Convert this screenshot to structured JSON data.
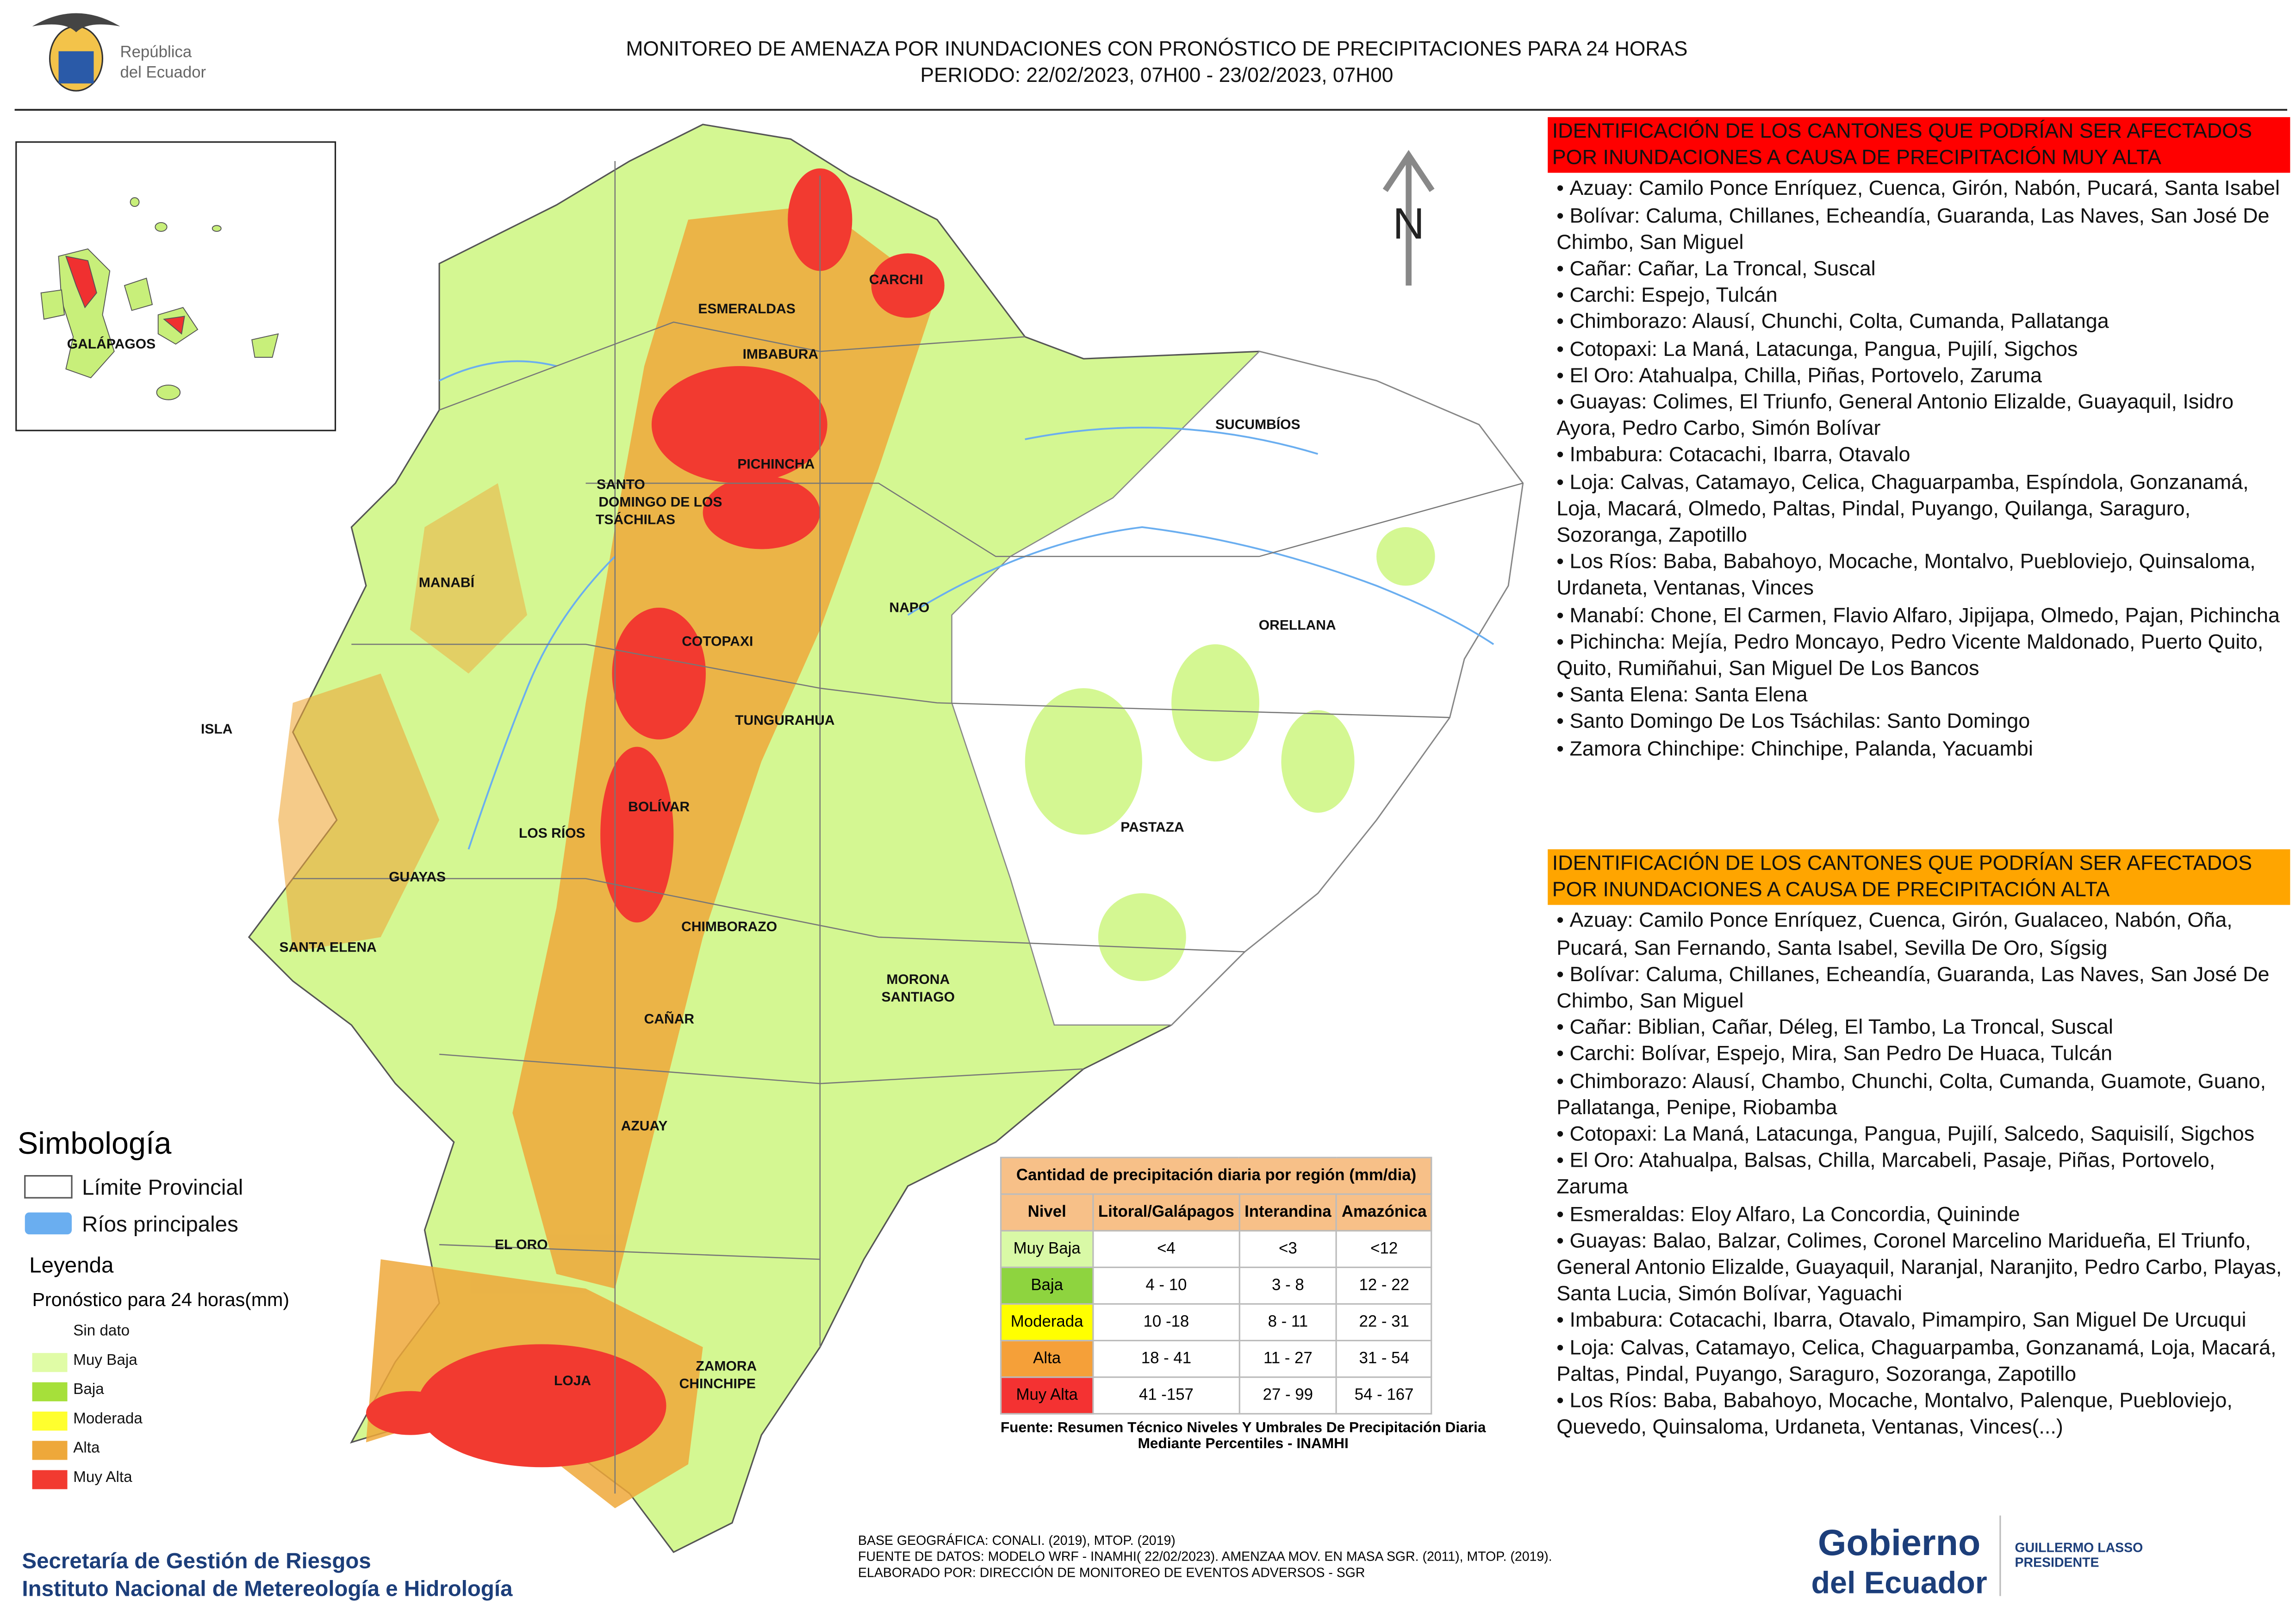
{
  "header": {
    "title": "MONITOREO DE AMENAZA POR INUNDACIONES  CON PRONÓSTICO DE  PRECIPITACIONES PARA 24 HORAS",
    "period": "PERIODO: 22/02/2023, 07H00 - 23/02/2023, 07H00"
  },
  "logo": {
    "line1": "República",
    "line2": "del Ecuador"
  },
  "map": {
    "north": "N",
    "inset_label": "GALÁPAGOS",
    "provinces": [
      "ESMERALDAS",
      "CARCHI",
      "IMBABURA",
      "SUCUMBÍOS",
      "PICHINCHA",
      "SANTO",
      "DOMINGO DE LOS",
      "TSÁCHILAS",
      "MANABÍ",
      "NAPO",
      "ORELLANA",
      "COTOPAXI",
      "TUNGURAHUA",
      "ISLA",
      "BOLÍVAR",
      "LOS RÍOS",
      "PASTAZA",
      "GUAYAS",
      "CHIMBORAZO",
      "SANTA ELENA",
      "MORONA",
      "SANTIAGO",
      "CAÑAR",
      "AZUAY",
      "EL ORO",
      "LOJA",
      "ZAMORA",
      "CHINCHIPE"
    ]
  },
  "simbologia": {
    "title": "Simbología",
    "items": [
      "Límite Provincial",
      "Ríos principales"
    ]
  },
  "leyenda": {
    "title": "Leyenda",
    "subtitle": "Pronóstico para 24 horas(mm)",
    "items": [
      {
        "label": "Sin dato",
        "color": "#ffffff"
      },
      {
        "label": " Muy Baja",
        "color": "#e0fca6"
      },
      {
        "label": "Baja",
        "color": "#a6e03a"
      },
      {
        "label": "Moderada",
        "color": "#ffff2e"
      },
      {
        "label": "Alta",
        "color": "#eea83a"
      },
      {
        "label": "Muy Alta",
        "color": "#f23a30"
      }
    ]
  },
  "table": {
    "title": "Cantidad de precipitación diaria por región (mm/dia)",
    "headers": [
      "Nivel",
      "Litoral/Galápagos",
      "Interandina",
      "Amazónica"
    ],
    "rows": [
      [
        "Muy Baja",
        "<4",
        "<3",
        "<12"
      ],
      [
        "Baja",
        "4 - 10",
        "3 - 8",
        "12 - 22"
      ],
      [
        "Moderada",
        "10 -18",
        "8 - 11",
        "22 - 31"
      ],
      [
        "Alta",
        "18 - 41",
        "11 - 27",
        "31 - 54"
      ],
      [
        "Muy Alta",
        "41 -157",
        "27 - 99",
        "54 - 167"
      ]
    ],
    "row_colors": [
      "#d9f9a6",
      "#8ed43f",
      "#ffff00",
      "#f5a039",
      "#f43232"
    ],
    "source": "Fuente: Resumen Técnico Niveles Y Umbrales De Precipitación Diaria Mediante Percentiles - INAMHI"
  },
  "credits": [
    "BASE GEOGRÁFICA: CONALI. (2019), MTOP. (2019)",
    "FUENTE DE DATOS: MODELO WRF - INAMHI( 22/02/2023).  AMENZAA MOV. EN MASA SGR. (2011), MTOP. (2019).",
    "ELABORADO POR: DIRECCIÓN DE MONITOREO DE EVENTOS ADVERSOS - SGR"
  ],
  "footer": {
    "org1": "Secretaría de Gestión de Riesgos",
    "org2": "Instituto Nacional de Metereología e Hidrología",
    "gov1": "Gobierno",
    "gov2": "del Ecuador",
    "pres1": "GUILLERMO LASSO",
    "pres2": "PRESIDENTE"
  },
  "muy_alta": {
    "heading": "IDENTIFICACIÓN DE LOS CANTONES QUE PODRÍAN SER AFECTADOS POR INUNDACIONES  A CAUSA DE PRECIPITACIÓN MUY ALTA",
    "color": "#ff0000",
    "items": [
      "Azuay: Camilo Ponce Enríquez, Cuenca, Girón, Nabón, Pucará, Santa Isabel",
      "Bolívar: Caluma, Chillanes, Echeandía, Guaranda, Las Naves, San José De Chimbo, San Miguel",
      "Cañar: Cañar, La Troncal, Suscal",
      "Carchi: Espejo, Tulcán",
      "Chimborazo: Alausí, Chunchi, Colta, Cumanda, Pallatanga",
      "Cotopaxi: La Maná, Latacunga, Pangua, Pujilí, Sigchos",
      "El Oro: Atahualpa, Chilla, Piñas, Portovelo, Zaruma",
      "Guayas: Colimes, El Triunfo, General Antonio Elizalde, Guayaquil, Isidro Ayora, Pedro Carbo, Simón Bolívar",
      "Imbabura: Cotacachi, Ibarra, Otavalo",
      "Loja: Calvas, Catamayo, Celica, Chaguarpamba, Espíndola, Gonzanamá, Loja, Macará, Olmedo, Paltas, Pindal, Puyango, Quilanga, Saraguro, Sozoranga, Zapotillo",
      "Los Ríos: Baba, Babahoyo, Mocache, Montalvo, Puebloviejo, Quinsaloma, Urdaneta, Ventanas, Vinces",
      "Manabí: Chone, El Carmen, Flavio Alfaro, Jipijapa, Olmedo, Pajan, Pichincha",
      "Pichincha: Mejía, Pedro Moncayo, Pedro Vicente Maldonado, Puerto Quito, Quito, Rumiñahui, San Miguel De Los Bancos",
      "Santa Elena: Santa Elena",
      "Santo Domingo De Los Tsáchilas: Santo Domingo",
      "Zamora Chinchipe: Chinchipe, Palanda, Yacuambi"
    ]
  },
  "alta": {
    "heading": "IDENTIFICACIÓN DE LOS CANTONES QUE  PODRÍAN SER AFECTADOS POR INUNDACIONES  A CAUSA DE PRECIPITACIÓN ALTA",
    "color": "#ffa500",
    "items": [
      "Azuay: Camilo Ponce Enríquez, Cuenca, Girón, Gualaceo, Nabón, Oña, Pucará, San Fernando, Santa Isabel, Sevilla De Oro, Sígsig",
      "Bolívar: Caluma, Chillanes, Echeandía, Guaranda, Las Naves, San José De Chimbo, San Miguel",
      "Cañar: Biblian, Cañar, Déleg, El Tambo, La Troncal, Suscal",
      "Carchi: Bolívar, Espejo, Mira, San Pedro De Huaca, Tulcán",
      "Chimborazo: Alausí, Chambo, Chunchi, Colta, Cumanda, Guamote, Guano, Pallatanga, Penipe, Riobamba",
      "Cotopaxi: La Maná, Latacunga, Pangua, Pujilí, Salcedo, Saquisilí, Sigchos",
      "El Oro: Atahualpa, Balsas, Chilla, Marcabeli, Pasaje, Piñas, Portovelo, Zaruma",
      "Esmeraldas: Eloy Alfaro, La Concordia, Quininde",
      "Guayas: Balao, Balzar, Colimes, Coronel Marcelino Maridueña, El Triunfo, General Antonio Elizalde, Guayaquil, Naranjal, Naranjito, Pedro Carbo, Playas, Santa Lucia, Simón Bolívar, Yaguachi",
      "Imbabura: Cotacachi, Ibarra, Otavalo, Pimampiro, San Miguel De Urcuqui",
      "Loja: Calvas, Catamayo, Celica, Chaguarpamba, Gonzanamá, Loja, Macará, Paltas, Pindal, Puyango, Saraguro, Sozoranga, Zapotillo",
      "Los Ríos: Baba, Babahoyo, Mocache, Montalvo, Palenque, Puebloviejo, Quevedo, Quinsaloma, Urdaneta, Ventanas, Vinces(...)"
    ]
  }
}
